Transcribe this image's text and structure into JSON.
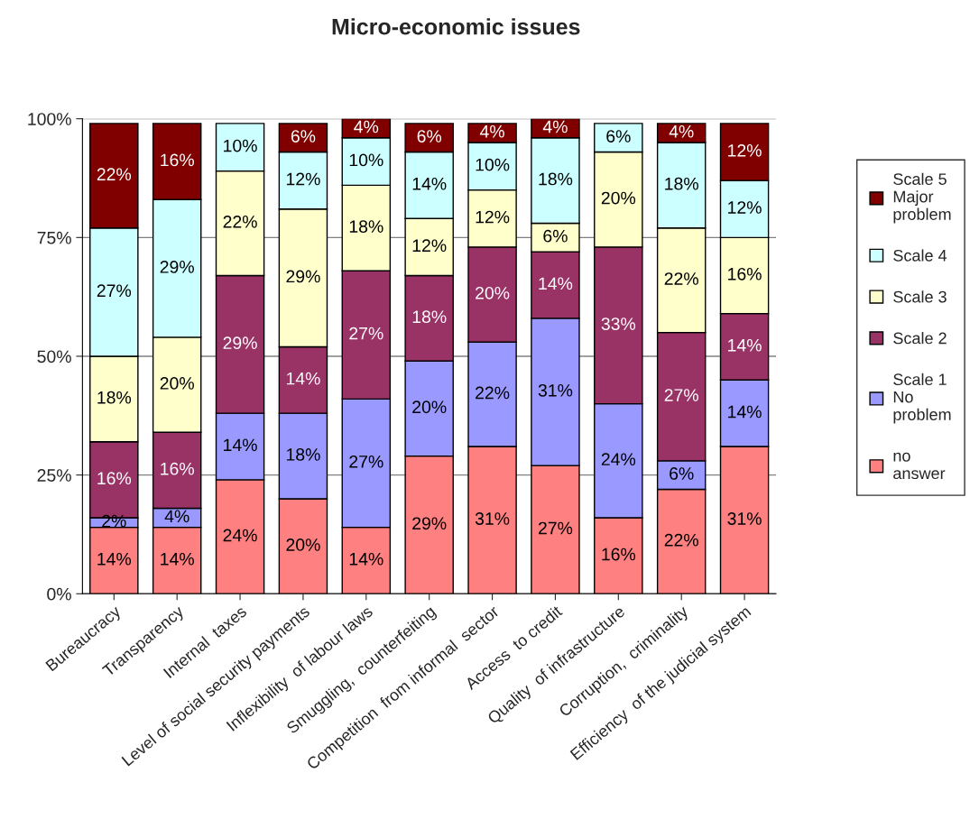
{
  "chart_data": {
    "type": "bar",
    "title": "Micro-economic issues",
    "stacked": true,
    "categories": [
      "Bureaucracy",
      "Transparency",
      "Internal  taxes",
      "Level of social security payments",
      "Inflexibility  of labour laws",
      "Smuggling,  counterfeiting",
      "Competition  from informal  sector",
      "Access  to credit",
      "Quality  of infrastructure",
      "Corruption,  criminality",
      "Efficiency  of the judicial system"
    ],
    "series": [
      {
        "name": "no\nanswer",
        "color": "#ff8080",
        "values": [
          14,
          14,
          24,
          20,
          14,
          29,
          31,
          27,
          16,
          22,
          31
        ],
        "value_labels": [
          "14%",
          "14%",
          "24%",
          "20%",
          "14%",
          "29%",
          "31%",
          "27%",
          "16%",
          "22%",
          "31%"
        ]
      },
      {
        "name": "Scale 1\nNo\nproblem",
        "color": "#9999ff",
        "values": [
          2,
          4,
          14,
          18,
          27,
          20,
          22,
          31,
          24,
          6,
          14
        ],
        "value_labels": [
          "2%",
          "4%",
          "14%",
          "18%",
          "27%",
          "20%",
          "22%",
          "31%",
          "24%",
          "6%",
          "14%"
        ]
      },
      {
        "name": "Scale 2",
        "color": "#993366",
        "values": [
          16,
          16,
          29,
          14,
          27,
          18,
          20,
          14,
          33,
          27,
          14
        ],
        "value_labels": [
          "16%",
          "16%",
          "29%",
          "14%",
          "27%",
          "18%",
          "20%",
          "14%",
          "33%",
          "27%",
          "14%"
        ]
      },
      {
        "name": "Scale 3",
        "color": "#ffffcc",
        "values": [
          18,
          20,
          22,
          29,
          18,
          12,
          12,
          6,
          20,
          22,
          16
        ],
        "value_labels": [
          "18%",
          "20%",
          "22%",
          "29%",
          "18%",
          "12%",
          "12%",
          "6%",
          "20%",
          "22%",
          "16%"
        ]
      },
      {
        "name": "Scale 4",
        "color": "#ccffff",
        "values": [
          27,
          29,
          10,
          12,
          10,
          14,
          10,
          18,
          6,
          18,
          12
        ],
        "value_labels": [
          "27%",
          "29%",
          "10%",
          "12%",
          "10%",
          "14%",
          "10%",
          "18%",
          "6%",
          "18%",
          "12%"
        ]
      },
      {
        "name": "Scale 5\nMajor\nproblem",
        "color": "#800000",
        "values": [
          22,
          16,
          0,
          6,
          4,
          6,
          4,
          4,
          0,
          4,
          12
        ],
        "value_labels": [
          "22%",
          "16%",
          null,
          "6%",
          "4%",
          "6%",
          "4%",
          "4%",
          null,
          "4%",
          "12%"
        ]
      }
    ],
    "ylim": [
      0,
      100
    ],
    "yticks": [
      {
        "value": 0,
        "label": "0%"
      },
      {
        "value": 25,
        "label": "25%"
      },
      {
        "value": 50,
        "label": "50%"
      },
      {
        "value": 75,
        "label": "75%"
      },
      {
        "value": 100,
        "label": "100%"
      }
    ],
    "grid": "y",
    "legend": "right"
  }
}
